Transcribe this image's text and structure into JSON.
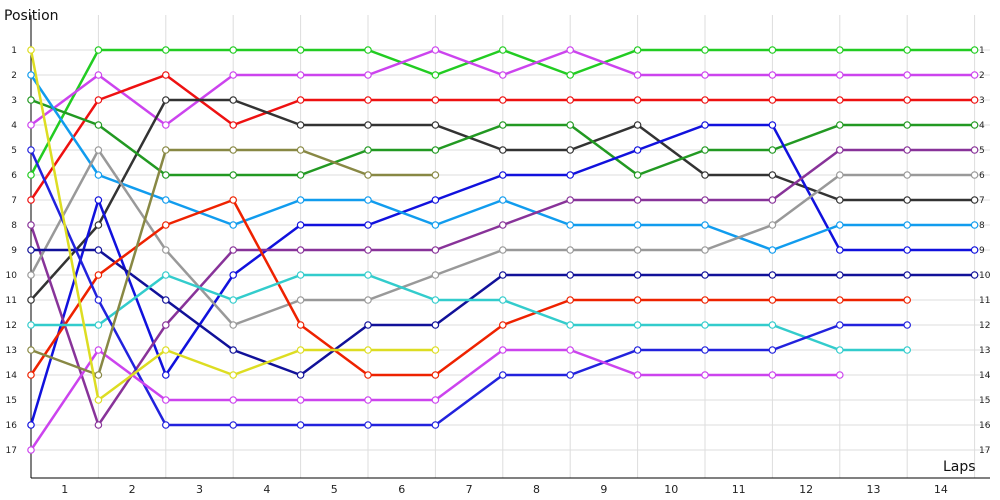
{
  "chart_data": {
    "type": "line",
    "ylabel": "Position",
    "xlabel": "Laps",
    "ylim": [
      1,
      17
    ],
    "y_inverted": true,
    "x_ticks": [
      "1",
      "2",
      "3",
      "4",
      "5",
      "6",
      "7",
      "8",
      "9",
      "10",
      "11",
      "12",
      "13",
      "14"
    ],
    "y_ticks": [
      "1",
      "2",
      "3",
      "4",
      "5",
      "6",
      "7",
      "8",
      "9",
      "10",
      "11",
      "12",
      "13",
      "14",
      "15",
      "16",
      "17"
    ],
    "grid": true,
    "x": [
      0,
      1,
      2,
      3,
      4,
      5,
      6,
      7,
      8,
      9,
      10,
      11,
      12,
      13,
      14
    ],
    "series": [
      {
        "color": "#22cc22",
        "values": [
          6,
          1,
          1,
          1,
          1,
          1,
          2,
          1,
          2,
          1,
          1,
          1,
          1,
          1,
          1
        ]
      },
      {
        "color": "#cc44ee",
        "values": [
          4,
          2,
          4,
          2,
          2,
          2,
          1,
          2,
          1,
          2,
          2,
          2,
          2,
          2,
          2
        ]
      },
      {
        "color": "#ee1111",
        "values": [
          7,
          3,
          2,
          4,
          3,
          3,
          3,
          3,
          3,
          3,
          3,
          3,
          3,
          3,
          3
        ]
      },
      {
        "color": "#333333",
        "values": [
          11,
          8,
          3,
          3,
          4,
          4,
          4,
          5,
          5,
          4,
          6,
          6,
          7,
          7,
          7
        ]
      },
      {
        "color": "#229922",
        "values": [
          3,
          4,
          6,
          6,
          6,
          5,
          5,
          4,
          4,
          6,
          5,
          5,
          4,
          4,
          4
        ]
      },
      {
        "color": "#1111dd",
        "values": [
          16,
          7,
          14,
          10,
          8,
          8,
          7,
          6,
          6,
          5,
          4,
          4,
          9,
          9,
          9
        ]
      },
      {
        "color": "#119cee",
        "values": [
          2,
          6,
          7,
          8,
          7,
          7,
          8,
          7,
          8,
          8,
          8,
          9,
          8,
          8,
          8
        ]
      },
      {
        "color": "#883399",
        "values": [
          8,
          16,
          12,
          9,
          9,
          9,
          9,
          8,
          7,
          7,
          7,
          7,
          5,
          5,
          5
        ]
      },
      {
        "color": "#999999",
        "values": [
          10,
          5,
          9,
          12,
          11,
          11,
          10,
          9,
          9,
          9,
          9,
          8,
          6,
          6,
          6
        ]
      },
      {
        "color": "#111199",
        "values": [
          9,
          9,
          11,
          13,
          14,
          12,
          12,
          10,
          10,
          10,
          10,
          10,
          10,
          10,
          10
        ]
      },
      {
        "color": "#ee2200",
        "values": [
          14,
          10,
          8,
          7,
          12,
          14,
          14,
          12,
          11,
          11,
          11,
          11,
          11,
          11,
          null
        ]
      },
      {
        "color": "#33cccc",
        "values": [
          12,
          12,
          10,
          11,
          10,
          10,
          11,
          11,
          12,
          12,
          12,
          12,
          13,
          13,
          null
        ]
      },
      {
        "color": "#2222dd",
        "values": [
          5,
          11,
          16,
          16,
          16,
          16,
          16,
          14,
          14,
          13,
          13,
          13,
          12,
          12,
          null
        ]
      },
      {
        "color": "#cc44ee",
        "values": [
          17,
          13,
          15,
          15,
          15,
          15,
          15,
          13,
          13,
          14,
          14,
          14,
          14,
          null,
          null
        ]
      },
      {
        "color": "#888844",
        "values": [
          13,
          14,
          5,
          5,
          5,
          6,
          6,
          null,
          null,
          null,
          null,
          null,
          null,
          null,
          null
        ]
      },
      {
        "color": "#dddd22",
        "values": [
          1,
          15,
          13,
          14,
          13,
          13,
          13,
          null,
          null,
          null,
          null,
          null,
          null,
          null,
          null
        ]
      }
    ]
  }
}
